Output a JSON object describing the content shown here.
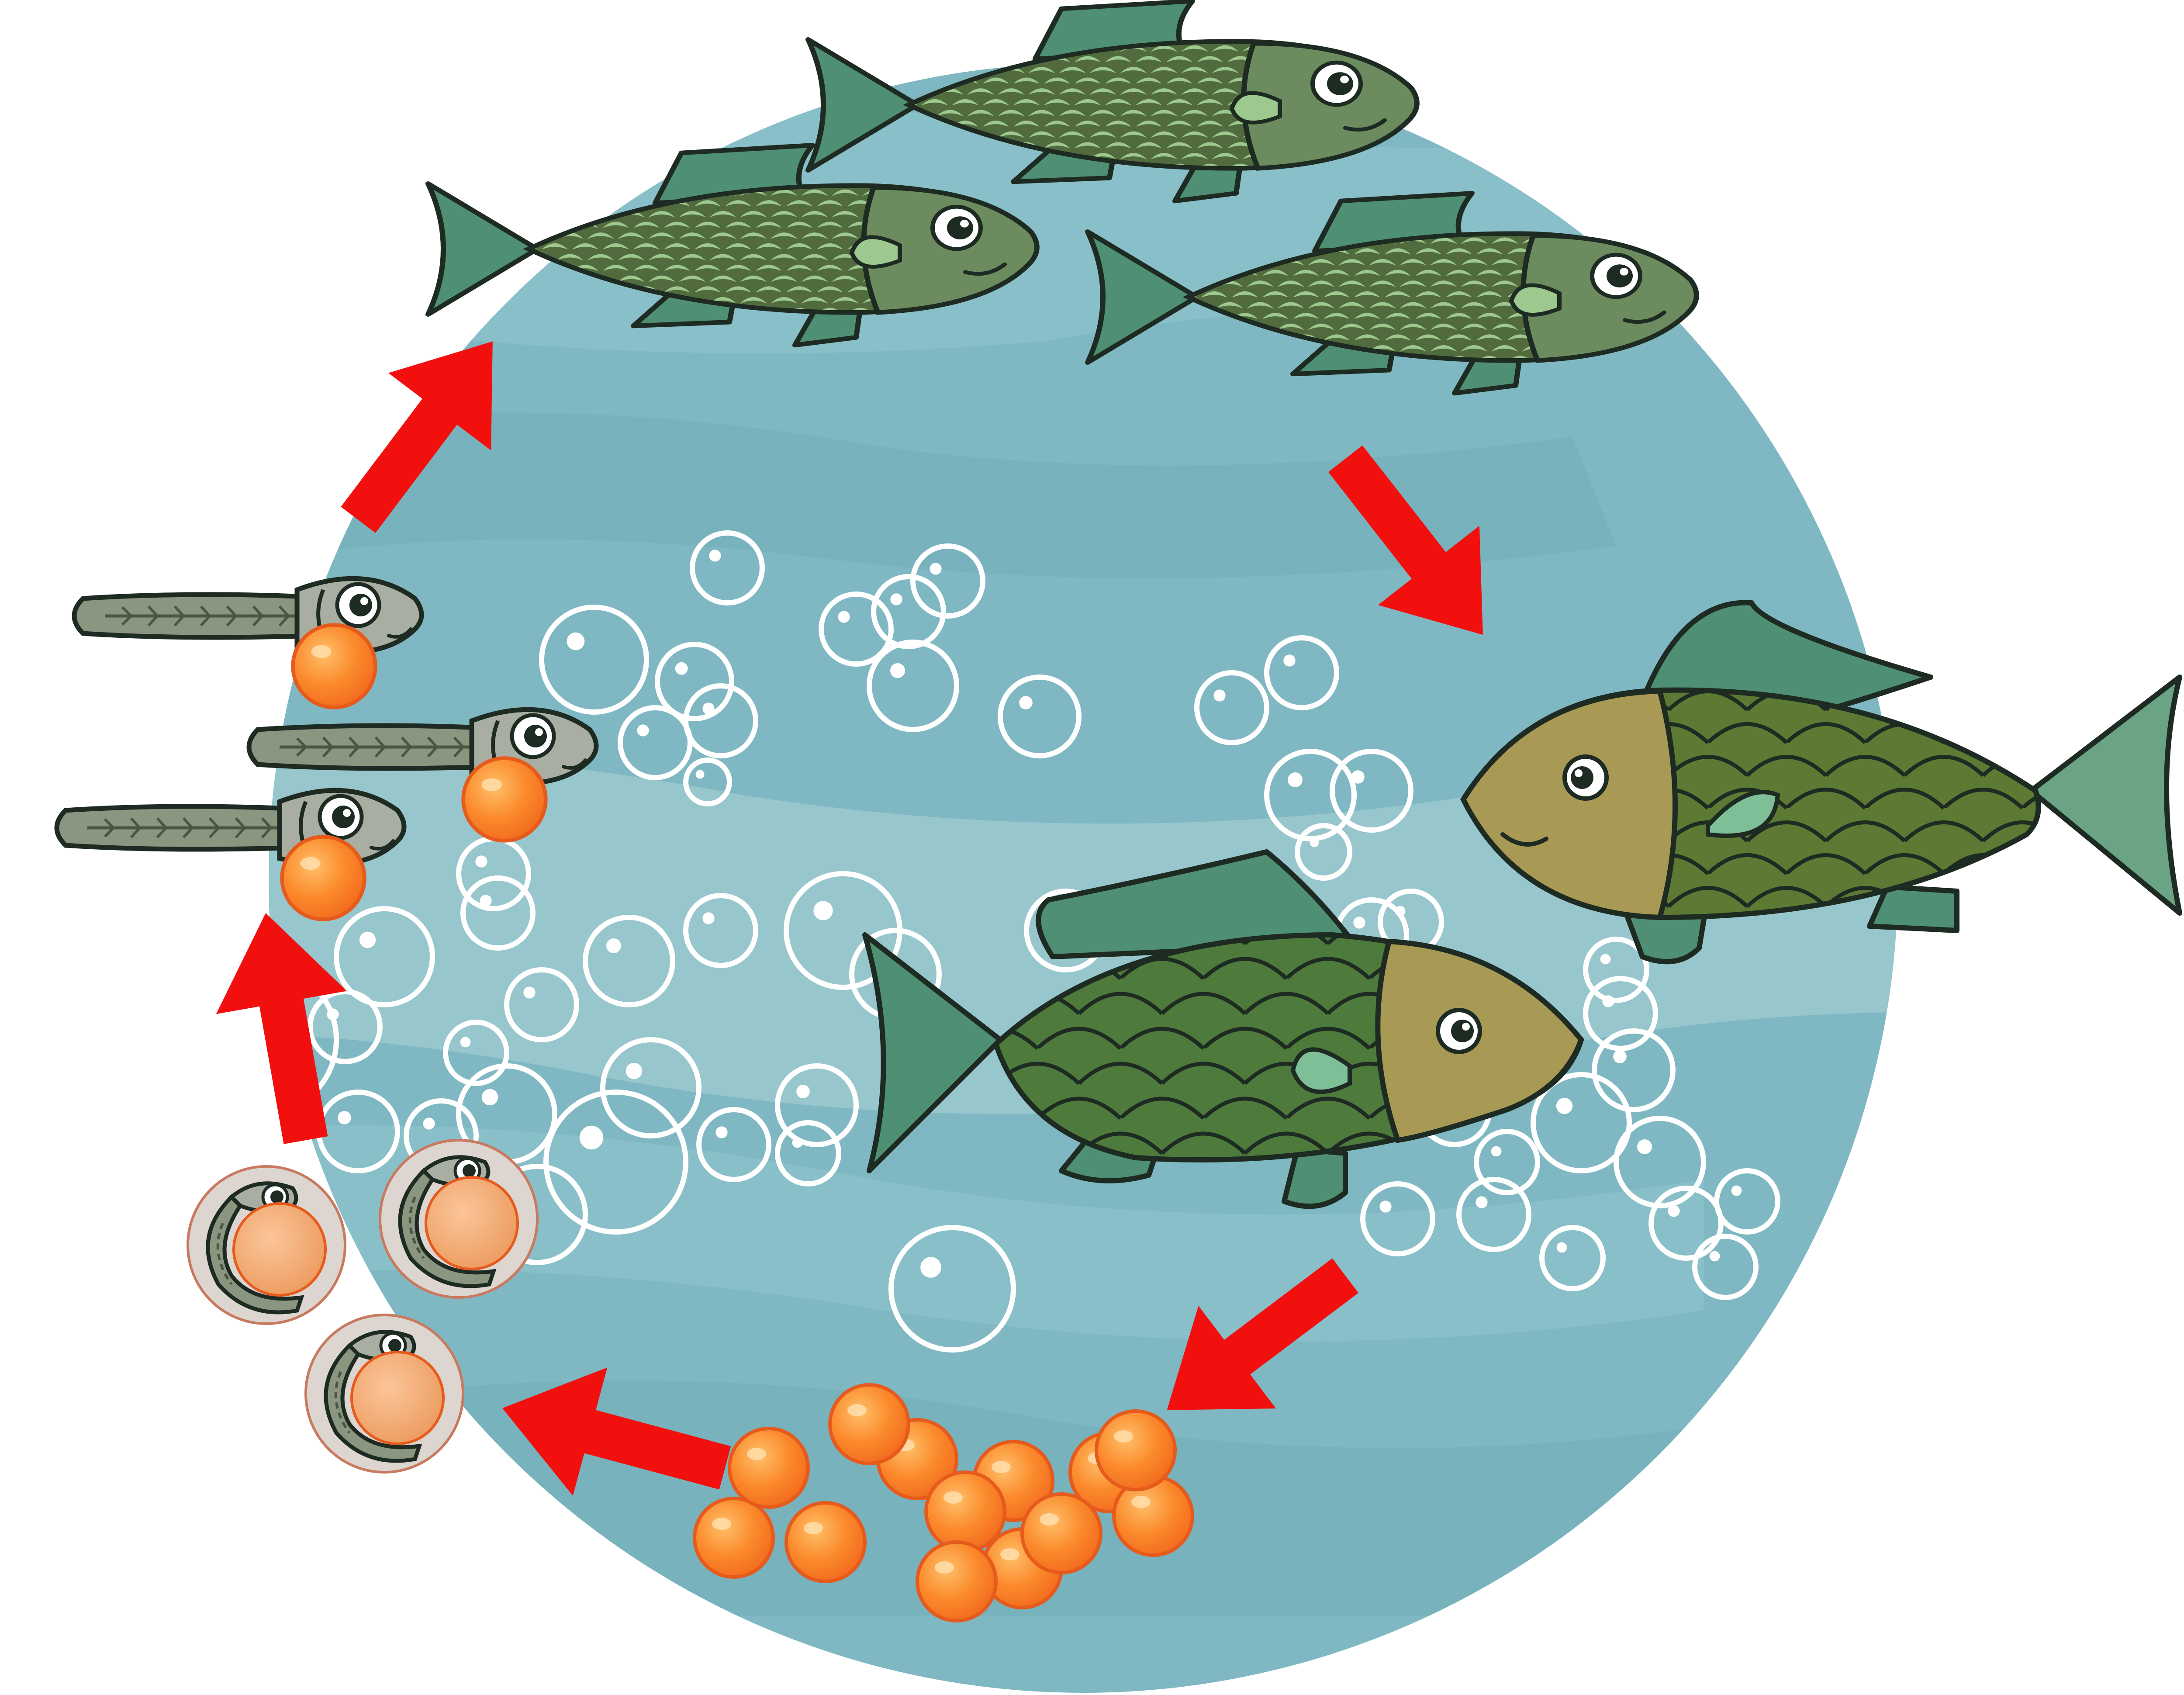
{
  "diagram": {
    "kind": "life-cycle",
    "subject": "fish",
    "stage_order": [
      "eggs",
      "embryos-in-eggs",
      "larvae-with-yolk-sac",
      "juvenile-fish",
      "adult-fish"
    ],
    "stages": [
      {
        "id": "eggs",
        "count": 13
      },
      {
        "id": "embryos-in-eggs",
        "count": 3
      },
      {
        "id": "larvae-with-yolk-sac",
        "count": 3
      },
      {
        "id": "juvenile-fish",
        "count": 3
      },
      {
        "id": "adult-fish",
        "count": 2
      }
    ],
    "arrow_count": 5,
    "direction": "clockwise"
  },
  "colors": {
    "background": "#ffffff",
    "water": "#7fb8c2",
    "water_light": "#9bc9cf",
    "water_dark": "#6aa7b4",
    "arrow": "#f2100f",
    "bubble": "#ffffff",
    "egg_fill": "#fb8a2c",
    "egg_highlight": "#ffc06a",
    "egg_stroke": "#e65a1c",
    "yolk": "#f4ae78",
    "egg_shell": "#ddd5cf",
    "larva_body": "#8b9680",
    "larva_head": "#a9aea2",
    "juvenile_body": "#526b3e",
    "juvenile_scale": "#9dc98f",
    "juvenile_head": "#6c8c5f",
    "fin": "#4f8f73",
    "adult_body": "#5c7a33",
    "adult_body_alt": "#4e7a3c",
    "adult_head": "#a89a55",
    "outline": "#1d2b22"
  },
  "icons": [
    "fish-icon",
    "egg-icon",
    "embryo-icon",
    "larva-icon",
    "bubble-icon",
    "arrow-icon"
  ]
}
